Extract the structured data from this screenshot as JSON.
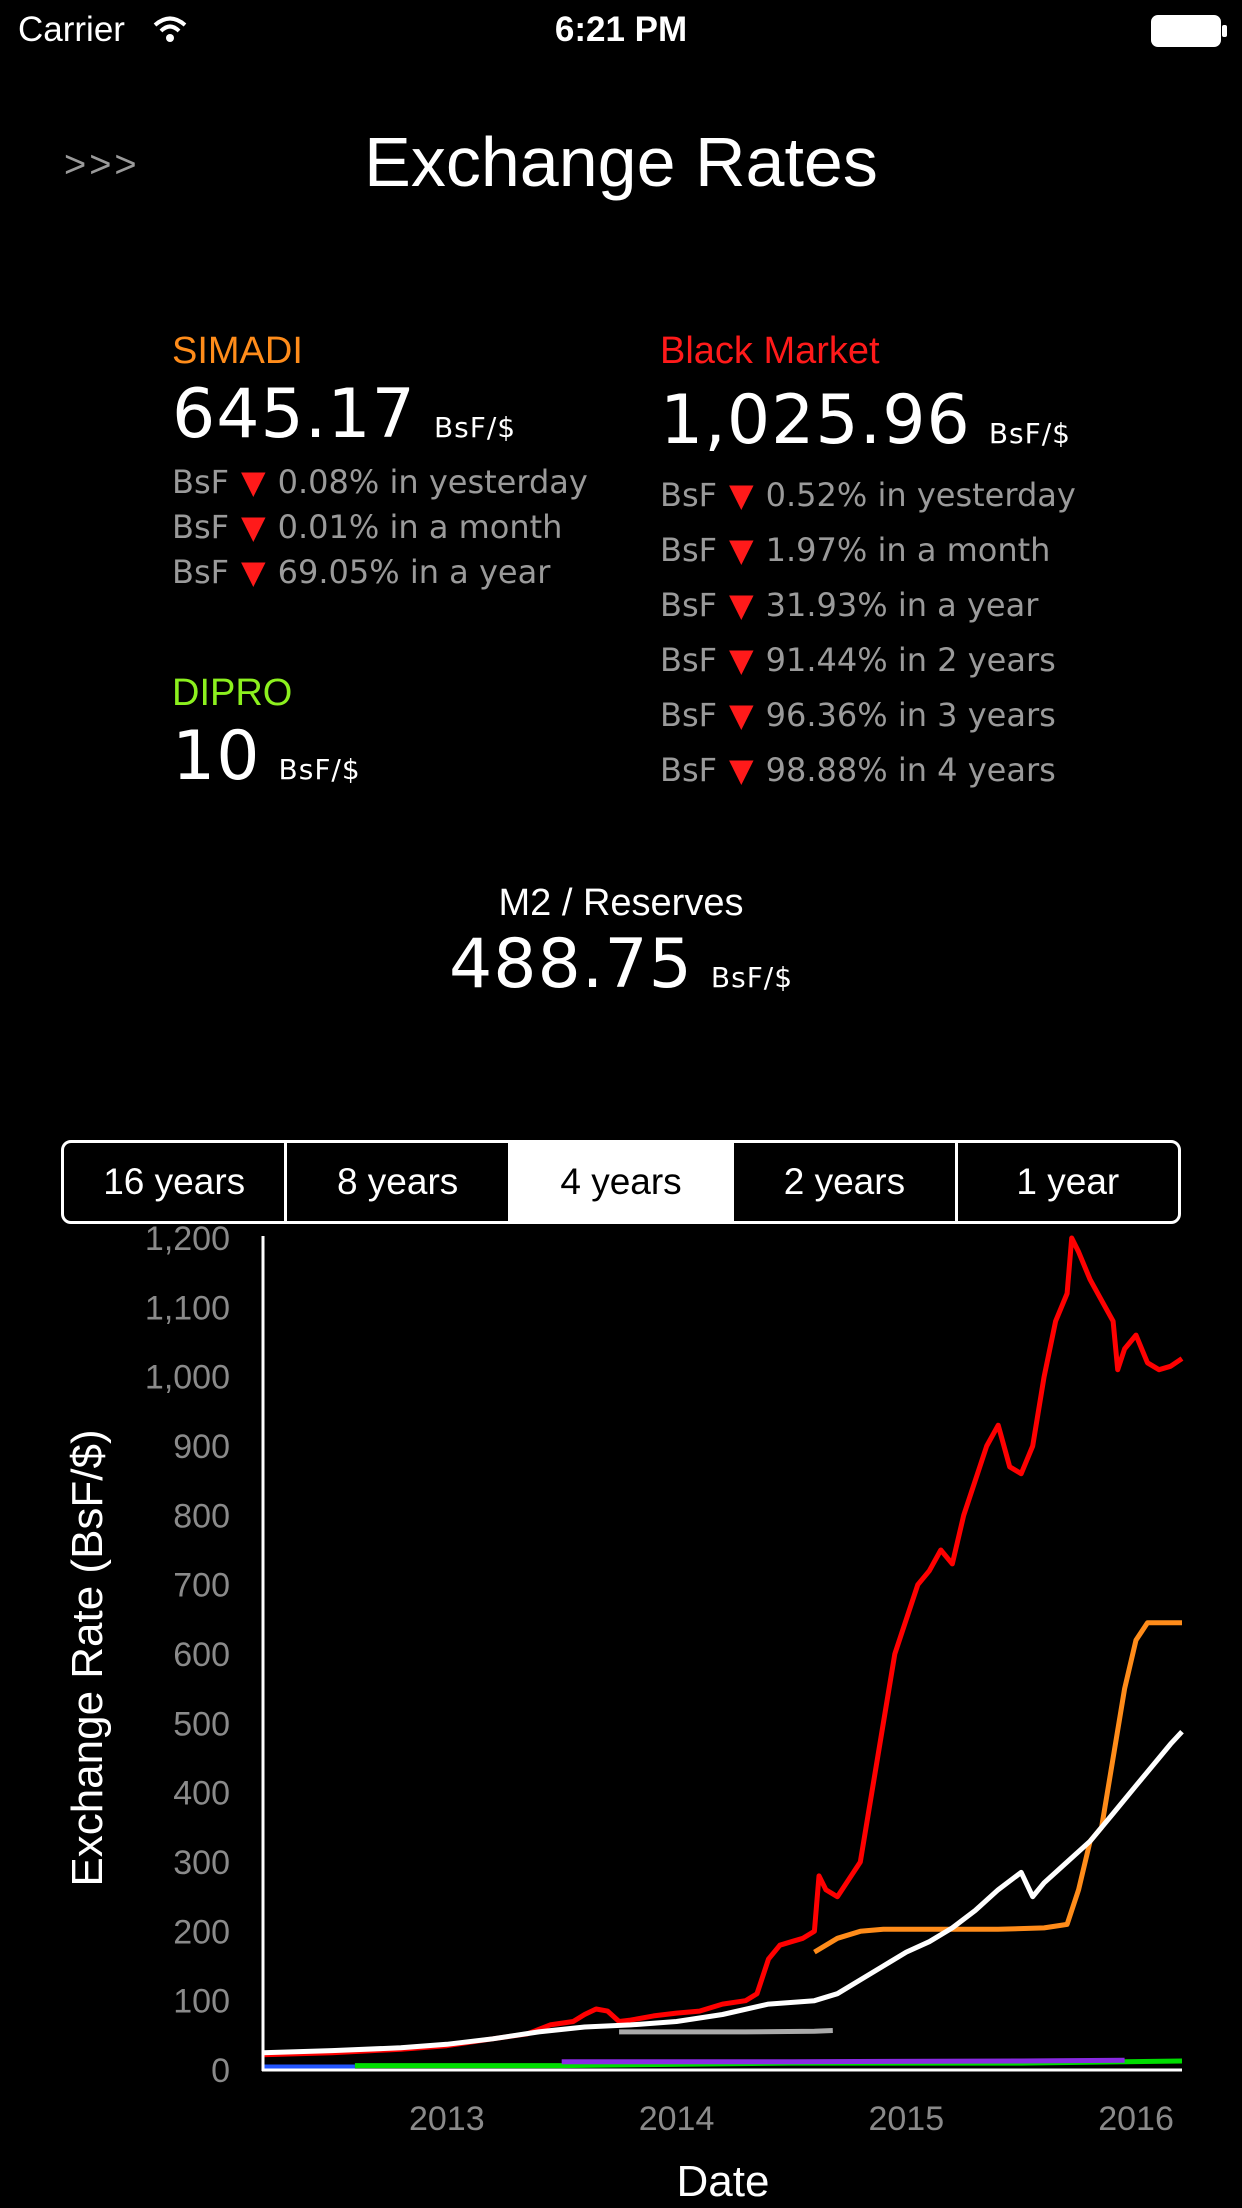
{
  "status_bar": {
    "carrier": "Carrier",
    "time": "6:21 PM"
  },
  "header": {
    "menu": ">>>",
    "title": "Exchange Rates"
  },
  "simadi": {
    "name": "SIMADI",
    "value": "645.17",
    "unit": "BsF/$",
    "color": "#ff8c1a",
    "changes": [
      {
        "prefix": "BsF",
        "arrow": "▼",
        "text": "0.08% in yesterday"
      },
      {
        "prefix": "BsF",
        "arrow": "▼",
        "text": "0.01% in a month"
      },
      {
        "prefix": "BsF",
        "arrow": "▼",
        "text": "69.05% in a year"
      }
    ]
  },
  "dipro": {
    "name": "DIPRO",
    "value": "10",
    "unit": "BsF/$",
    "color": "#8cf01e"
  },
  "black_market": {
    "name": "Black Market",
    "value": "1,025.96",
    "unit": "BsF/$",
    "color": "#ff1a1a",
    "changes": [
      {
        "prefix": "BsF",
        "arrow": "▼",
        "text": "0.52% in yesterday"
      },
      {
        "prefix": "BsF",
        "arrow": "▼",
        "text": "1.97% in a month"
      },
      {
        "prefix": "BsF",
        "arrow": "▼",
        "text": "31.93% in a year"
      },
      {
        "prefix": "BsF",
        "arrow": "▼",
        "text": "91.44% in 2 years"
      },
      {
        "prefix": "BsF",
        "arrow": "▼",
        "text": "96.36% in 3 years"
      },
      {
        "prefix": "BsF",
        "arrow": "▼",
        "text": "98.88% in 4 years"
      }
    ]
  },
  "m2": {
    "name": "M2 / Reserves",
    "value": "488.75",
    "unit": "BsF/$"
  },
  "range_selector": {
    "options": [
      "16 years",
      "8 years",
      "4 years",
      "2 years",
      "1 year"
    ],
    "selected": "4 years"
  },
  "chart_data": {
    "type": "line",
    "xlabel": "Date",
    "ylabel": "Exchange Rate (BsF/$)",
    "xlim": [
      2012.2,
      2016.2
    ],
    "ylim": [
      0,
      1200
    ],
    "xticks": [
      "2013",
      "2014",
      "2015",
      "2016"
    ],
    "yticks": [
      "0",
      "100",
      "200",
      "300",
      "400",
      "500",
      "600",
      "700",
      "800",
      "900",
      "1,000",
      "1,100",
      "1,200"
    ],
    "grid": false,
    "series": [
      {
        "color": "#ff0000",
        "points": [
          [
            2012.2,
            22
          ],
          [
            2012.5,
            25
          ],
          [
            2012.8,
            30
          ],
          [
            2013.0,
            35
          ],
          [
            2013.2,
            45
          ],
          [
            2013.35,
            52
          ],
          [
            2013.45,
            65
          ],
          [
            2013.55,
            70
          ],
          [
            2013.6,
            80
          ],
          [
            2013.65,
            88
          ],
          [
            2013.7,
            85
          ],
          [
            2013.75,
            70
          ],
          [
            2013.8,
            72
          ],
          [
            2013.9,
            78
          ],
          [
            2014.0,
            82
          ],
          [
            2014.1,
            85
          ],
          [
            2014.2,
            95
          ],
          [
            2014.3,
            100
          ],
          [
            2014.35,
            110
          ],
          [
            2014.4,
            160
          ],
          [
            2014.45,
            180
          ],
          [
            2014.5,
            185
          ],
          [
            2014.55,
            190
          ],
          [
            2014.6,
            200
          ],
          [
            2014.62,
            280
          ],
          [
            2014.65,
            260
          ],
          [
            2014.7,
            250
          ],
          [
            2014.8,
            300
          ],
          [
            2014.85,
            400
          ],
          [
            2014.9,
            500
          ],
          [
            2014.95,
            600
          ],
          [
            2015.0,
            650
          ],
          [
            2015.05,
            700
          ],
          [
            2015.1,
            720
          ],
          [
            2015.15,
            750
          ],
          [
            2015.2,
            730
          ],
          [
            2015.25,
            800
          ],
          [
            2015.3,
            850
          ],
          [
            2015.35,
            900
          ],
          [
            2015.4,
            930
          ],
          [
            2015.45,
            870
          ],
          [
            2015.5,
            860
          ],
          [
            2015.55,
            900
          ],
          [
            2015.6,
            1000
          ],
          [
            2015.65,
            1080
          ],
          [
            2015.7,
            1120
          ],
          [
            2015.72,
            1200
          ],
          [
            2015.75,
            1180
          ],
          [
            2015.8,
            1140
          ],
          [
            2015.85,
            1110
          ],
          [
            2015.9,
            1080
          ],
          [
            2015.92,
            1010
          ],
          [
            2015.95,
            1040
          ],
          [
            2016.0,
            1060
          ],
          [
            2016.05,
            1020
          ],
          [
            2016.1,
            1010
          ],
          [
            2016.15,
            1015
          ],
          [
            2016.2,
            1026
          ]
        ]
      },
      {
        "color": "#ff8c1a",
        "points": [
          [
            2014.6,
            170
          ],
          [
            2014.7,
            190
          ],
          [
            2014.8,
            200
          ],
          [
            2014.9,
            203
          ],
          [
            2015.0,
            203
          ],
          [
            2015.2,
            203
          ],
          [
            2015.4,
            203
          ],
          [
            2015.6,
            205
          ],
          [
            2015.7,
            210
          ],
          [
            2015.75,
            260
          ],
          [
            2015.8,
            330
          ],
          [
            2015.85,
            350
          ],
          [
            2015.9,
            450
          ],
          [
            2015.95,
            550
          ],
          [
            2016.0,
            620
          ],
          [
            2016.05,
            645
          ],
          [
            2016.2,
            645
          ]
        ]
      },
      {
        "color": "#ffffff",
        "points": [
          [
            2012.2,
            25
          ],
          [
            2012.5,
            28
          ],
          [
            2012.8,
            32
          ],
          [
            2013.0,
            37
          ],
          [
            2013.2,
            45
          ],
          [
            2013.4,
            55
          ],
          [
            2013.6,
            62
          ],
          [
            2013.8,
            65
          ],
          [
            2014.0,
            70
          ],
          [
            2014.2,
            80
          ],
          [
            2014.4,
            95
          ],
          [
            2014.6,
            100
          ],
          [
            2014.7,
            110
          ],
          [
            2014.8,
            130
          ],
          [
            2014.9,
            150
          ],
          [
            2015.0,
            170
          ],
          [
            2015.1,
            185
          ],
          [
            2015.2,
            205
          ],
          [
            2015.3,
            230
          ],
          [
            2015.4,
            260
          ],
          [
            2015.5,
            285
          ],
          [
            2015.55,
            250
          ],
          [
            2015.6,
            270
          ],
          [
            2015.7,
            300
          ],
          [
            2015.8,
            330
          ],
          [
            2015.9,
            370
          ],
          [
            2016.0,
            410
          ],
          [
            2016.1,
            450
          ],
          [
            2016.15,
            470
          ],
          [
            2016.2,
            488
          ]
        ]
      },
      {
        "color": "#aaaaaa",
        "points": [
          [
            2013.75,
            55
          ],
          [
            2014.0,
            55
          ],
          [
            2014.3,
            55
          ],
          [
            2014.6,
            56
          ],
          [
            2014.68,
            57
          ]
        ]
      },
      {
        "color": "#00dd00",
        "points": [
          [
            2012.6,
            6.3
          ],
          [
            2013.5,
            6.3
          ],
          [
            2014.5,
            10
          ],
          [
            2015.5,
            10
          ],
          [
            2016.2,
            13
          ]
        ]
      },
      {
        "color": "#8a2be2",
        "points": [
          [
            2013.5,
            12
          ],
          [
            2014.5,
            12
          ],
          [
            2015.5,
            13
          ],
          [
            2015.95,
            14
          ]
        ]
      },
      {
        "color": "#2255ff",
        "points": [
          [
            2012.2,
            4.3
          ],
          [
            2012.6,
            4.3
          ]
        ]
      }
    ]
  }
}
